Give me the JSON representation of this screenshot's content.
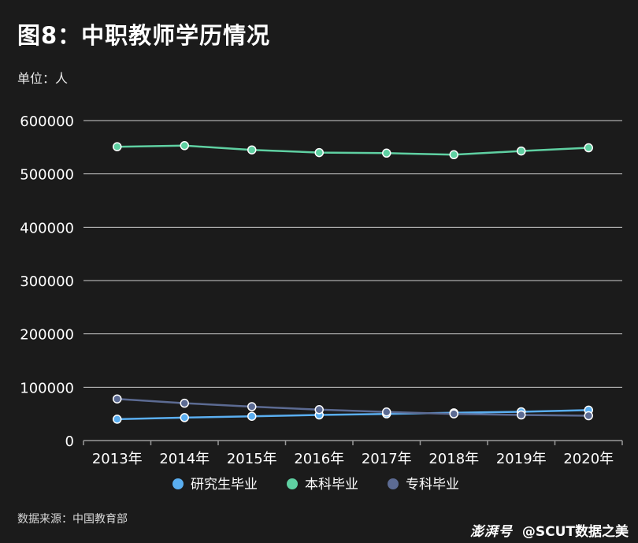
{
  "title": "图8：中职教师学历情况",
  "unit": "单位：人",
  "source": "数据来源：中国教育部",
  "watermark": {
    "logo": "澎湃号",
    "author": "@SCUT数据之美"
  },
  "chart_data": {
    "type": "line",
    "title": "图8：中职教师学历情况",
    "ylabel": "单位：人",
    "xlabel": "",
    "categories": [
      "2013年",
      "2014年",
      "2015年",
      "2016年",
      "2017年",
      "2018年",
      "2019年",
      "2020年"
    ],
    "ylim": [
      0,
      600000
    ],
    "yticks": [
      "0",
      "100000",
      "200000",
      "300000",
      "400000",
      "500000",
      "600000"
    ],
    "ytick_values": [
      0,
      100000,
      200000,
      300000,
      400000,
      500000,
      600000
    ],
    "grid": true,
    "legend_position": "bottom",
    "series": [
      {
        "name": "研究生毕业",
        "color": "#5aaef0",
        "values": [
          40000,
          43000,
          45500,
          48000,
          50000,
          52000,
          54000,
          57000
        ]
      },
      {
        "name": "本科毕业",
        "color": "#5fd0a2",
        "values": [
          551000,
          553000,
          545000,
          540000,
          539000,
          536000,
          543000,
          549000
        ]
      },
      {
        "name": "专科毕业",
        "color": "#5c6b93",
        "values": [
          78000,
          70000,
          63500,
          58000,
          53500,
          50000,
          48000,
          46500
        ]
      }
    ]
  }
}
